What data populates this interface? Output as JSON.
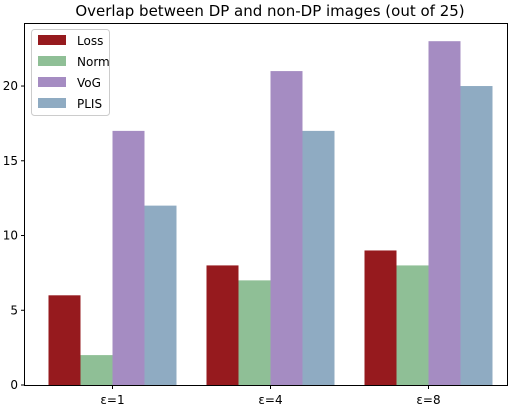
{
  "chart_data": {
    "type": "bar",
    "title": "Overlap between DP and non-DP images (out of 25)",
    "xlabel": "",
    "ylabel": "",
    "categories": [
      "ε=1",
      "ε=4",
      "ε=8"
    ],
    "series": [
      {
        "name": "Loss",
        "color": "#961a1e",
        "values": [
          6,
          8,
          9
        ]
      },
      {
        "name": "Norm",
        "color": "#8fbf96",
        "values": [
          2,
          7,
          8
        ]
      },
      {
        "name": "VoG",
        "color": "#a58cc2",
        "values": [
          17,
          21,
          23
        ]
      },
      {
        "name": "PLIS",
        "color": "#8fabc2",
        "values": [
          12,
          17,
          20
        ]
      }
    ],
    "ylim": [
      0,
      24.15
    ],
    "yticks": [
      0,
      5,
      10,
      15,
      20
    ],
    "grid": false,
    "legend_position": "top-left"
  }
}
